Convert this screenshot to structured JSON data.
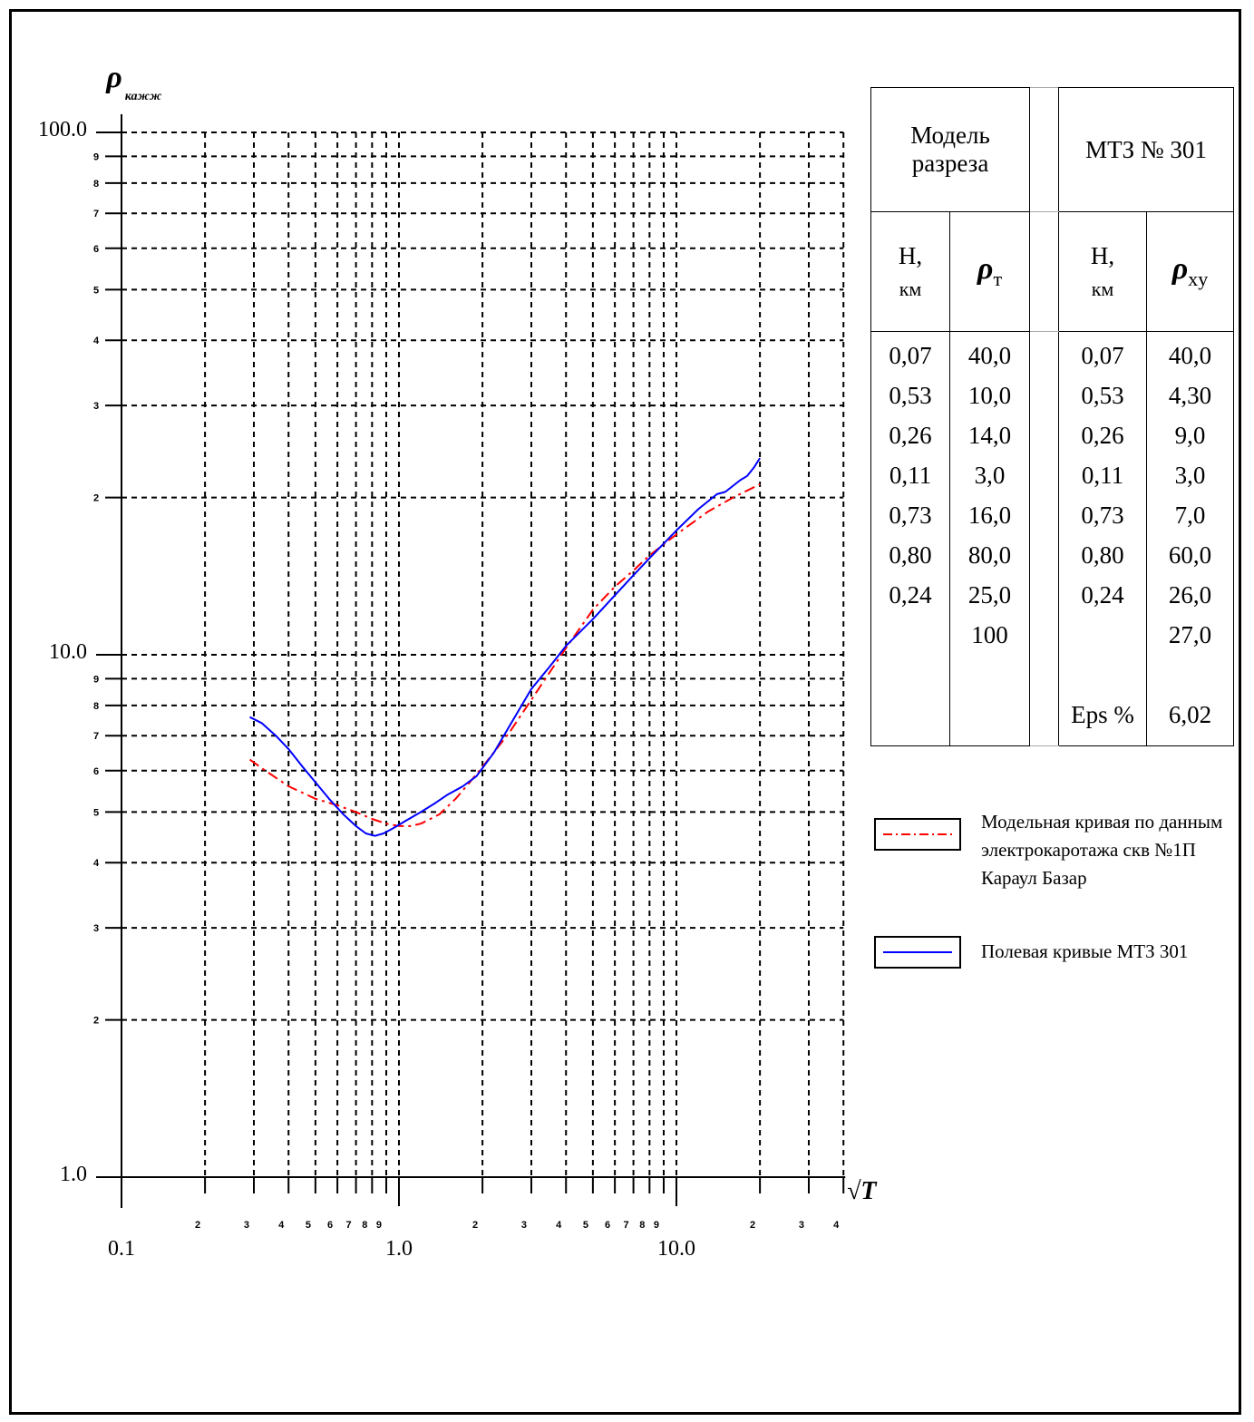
{
  "chart_data": {
    "type": "line",
    "x_scale": "log",
    "y_scale": "log",
    "xlim": [
      0.1,
      40
    ],
    "ylim": [
      1.0,
      100.0
    ],
    "grid": true,
    "y_label_glyph": "ρ",
    "y_label_sub": "кажж",
    "x_label": "√T",
    "x_major_labels": [
      "0.1",
      "1.0",
      "10.0"
    ],
    "y_major_labels": [
      "1.0",
      "10.0",
      "100.0"
    ],
    "x_minor_labels": [
      "2",
      "3",
      "4",
      "5",
      "6",
      "7",
      "8",
      "9",
      "2",
      "3",
      "4",
      "5",
      "6",
      "7",
      "8",
      "9",
      "2",
      "3",
      "4"
    ],
    "y_minor_labels": [
      "2",
      "3",
      "4",
      "5",
      "6",
      "7",
      "8",
      "9",
      "2",
      "3",
      "4",
      "5",
      "6",
      "7",
      "8",
      "9"
    ],
    "series": [
      {
        "name": "Модельная кривая по данным электрокаротажа скв №1П Караул Базар",
        "color": "#ff0000",
        "style": "dash-dot",
        "x": [
          0.29,
          0.33,
          0.4,
          0.5,
          0.6,
          0.7,
          0.8,
          0.9,
          1.0,
          1.1,
          1.2,
          1.4,
          1.6,
          1.8,
          2.0,
          2.5,
          3.0,
          4.0,
          5.0,
          6.0,
          7.0,
          8.0,
          10.0,
          13.0,
          16.0,
          20.0
        ],
        "y": [
          6.3,
          6.0,
          5.6,
          5.3,
          5.15,
          5.0,
          4.85,
          4.75,
          4.7,
          4.7,
          4.75,
          4.95,
          5.3,
          5.7,
          6.1,
          7.1,
          8.2,
          10.3,
          12.2,
          13.5,
          14.5,
          15.5,
          17.0,
          18.8,
          20.0,
          21.2
        ]
      },
      {
        "name": "Полевая кривые МТЗ 301",
        "color": "#0000ff",
        "style": "solid",
        "x": [
          0.29,
          0.32,
          0.36,
          0.4,
          0.45,
          0.5,
          0.56,
          0.63,
          0.7,
          0.76,
          0.82,
          0.88,
          0.95,
          1.05,
          1.2,
          1.35,
          1.5,
          1.7,
          1.9,
          2.2,
          2.5,
          3.0,
          3.5,
          4.0,
          5.0,
          6.0,
          7.0,
          8.0,
          10.0,
          12.0,
          14.0,
          15.0,
          17.0,
          18.0,
          19.0,
          20.0
        ],
        "y": [
          7.6,
          7.4,
          7.0,
          6.6,
          6.1,
          5.7,
          5.3,
          4.95,
          4.7,
          4.55,
          4.5,
          4.55,
          4.65,
          4.8,
          5.0,
          5.2,
          5.4,
          5.6,
          5.85,
          6.5,
          7.3,
          8.6,
          9.5,
          10.4,
          11.7,
          13.0,
          14.2,
          15.3,
          17.3,
          19.0,
          20.3,
          20.5,
          21.6,
          22.0,
          22.8,
          23.8
        ]
      }
    ]
  },
  "table": {
    "model_title": "Модель разреза",
    "mtz_title": "МТЗ № 301",
    "h_label_1": "Н,",
    "h_label_2": "км",
    "rho_glyph": "ρ",
    "rho_t_sub": "т",
    "rho_xy_sub": "xy",
    "model_h": [
      "0,07",
      "0,53",
      "0,26",
      "0,11",
      "0,73",
      "0,80",
      "0,24"
    ],
    "model_rho": [
      "40,0",
      "10,0",
      "14,0",
      "3,0",
      "16,0",
      "80,0",
      "25,0",
      "100"
    ],
    "mtz_h": [
      "0,07",
      "0,53",
      "0,26",
      "0,11",
      "0,73",
      "0,80",
      "0,24",
      "",
      "",
      "Eps %"
    ],
    "mtz_rho": [
      "40,0",
      "4,30",
      "9,0",
      "3,0",
      "7,0",
      "60,0",
      "26,0",
      "27,0",
      "",
      "6,02"
    ]
  },
  "legend": {
    "model_line1": "Модельная кривая по данным",
    "model_line2": "электрокаротажа скв №1П",
    "model_line3": "Караул Базар",
    "field_line1": "Полевая кривые МТЗ 301"
  }
}
